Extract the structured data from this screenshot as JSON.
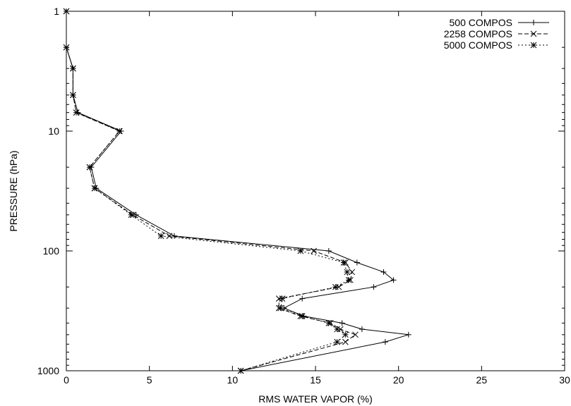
{
  "chart_data": {
    "type": "line",
    "title": "",
    "xlabel": "RMS WATER VAPOR (%)",
    "ylabel": "PRESSURE (hPa)",
    "xlim": [
      0,
      30
    ],
    "ylim": [
      1,
      1000
    ],
    "y_scale": "log",
    "y_inverted": true,
    "x_ticks": [
      "0",
      "5",
      "10",
      "15",
      "20",
      "25",
      "30"
    ],
    "y_ticks": [
      "1",
      "10",
      "100",
      "1000"
    ],
    "grid": false,
    "legend_position": "top-right",
    "series": [
      {
        "name": "500 COMPOS",
        "marker": "plus",
        "linestyle": "solid",
        "points": [
          [
            0.0,
            1
          ],
          [
            0.0,
            2
          ],
          [
            0.4,
            3
          ],
          [
            0.4,
            5
          ],
          [
            0.7,
            7
          ],
          [
            3.3,
            10
          ],
          [
            1.5,
            20
          ],
          [
            1.8,
            30
          ],
          [
            4.2,
            50
          ],
          [
            6.5,
            75
          ],
          [
            15.8,
            100
          ],
          [
            17.5,
            125
          ],
          [
            19.1,
            150
          ],
          [
            19.7,
            175
          ],
          [
            18.5,
            200
          ],
          [
            14.2,
            250
          ],
          [
            13.1,
            300
          ],
          [
            14.3,
            350
          ],
          [
            16.6,
            400
          ],
          [
            17.8,
            450
          ],
          [
            20.6,
            500
          ],
          [
            19.2,
            575
          ],
          [
            10.5,
            1000
          ]
        ]
      },
      {
        "name": "2258 COMPOS",
        "marker": "x",
        "linestyle": "dashed",
        "points": [
          [
            0.0,
            1
          ],
          [
            0.0,
            2
          ],
          [
            0.4,
            3
          ],
          [
            0.4,
            5
          ],
          [
            0.6,
            7
          ],
          [
            3.2,
            10
          ],
          [
            1.4,
            20
          ],
          [
            1.7,
            30
          ],
          [
            4.0,
            50
          ],
          [
            6.2,
            75
          ],
          [
            14.9,
            100
          ],
          [
            16.8,
            125
          ],
          [
            17.2,
            150
          ],
          [
            17.1,
            175
          ],
          [
            16.4,
            200
          ],
          [
            12.8,
            250
          ],
          [
            12.8,
            300
          ],
          [
            14.1,
            350
          ],
          [
            15.9,
            400
          ],
          [
            16.5,
            450
          ],
          [
            17.4,
            500
          ],
          [
            16.8,
            575
          ],
          [
            10.5,
            1000
          ]
        ]
      },
      {
        "name": "5000 COMPOS",
        "marker": "star",
        "linestyle": "dotted",
        "points": [
          [
            0.0,
            1
          ],
          [
            0.0,
            2
          ],
          [
            0.4,
            3
          ],
          [
            0.4,
            5
          ],
          [
            0.6,
            7
          ],
          [
            3.2,
            10
          ],
          [
            1.4,
            20
          ],
          [
            1.7,
            30
          ],
          [
            3.9,
            50
          ],
          [
            5.7,
            75
          ],
          [
            14.1,
            100
          ],
          [
            16.7,
            125
          ],
          [
            16.9,
            150
          ],
          [
            17.0,
            175
          ],
          [
            16.2,
            200
          ],
          [
            13.0,
            250
          ],
          [
            12.9,
            300
          ],
          [
            14.2,
            350
          ],
          [
            15.8,
            400
          ],
          [
            16.3,
            450
          ],
          [
            16.8,
            500
          ],
          [
            16.3,
            575
          ],
          [
            10.5,
            1000
          ]
        ]
      }
    ]
  }
}
